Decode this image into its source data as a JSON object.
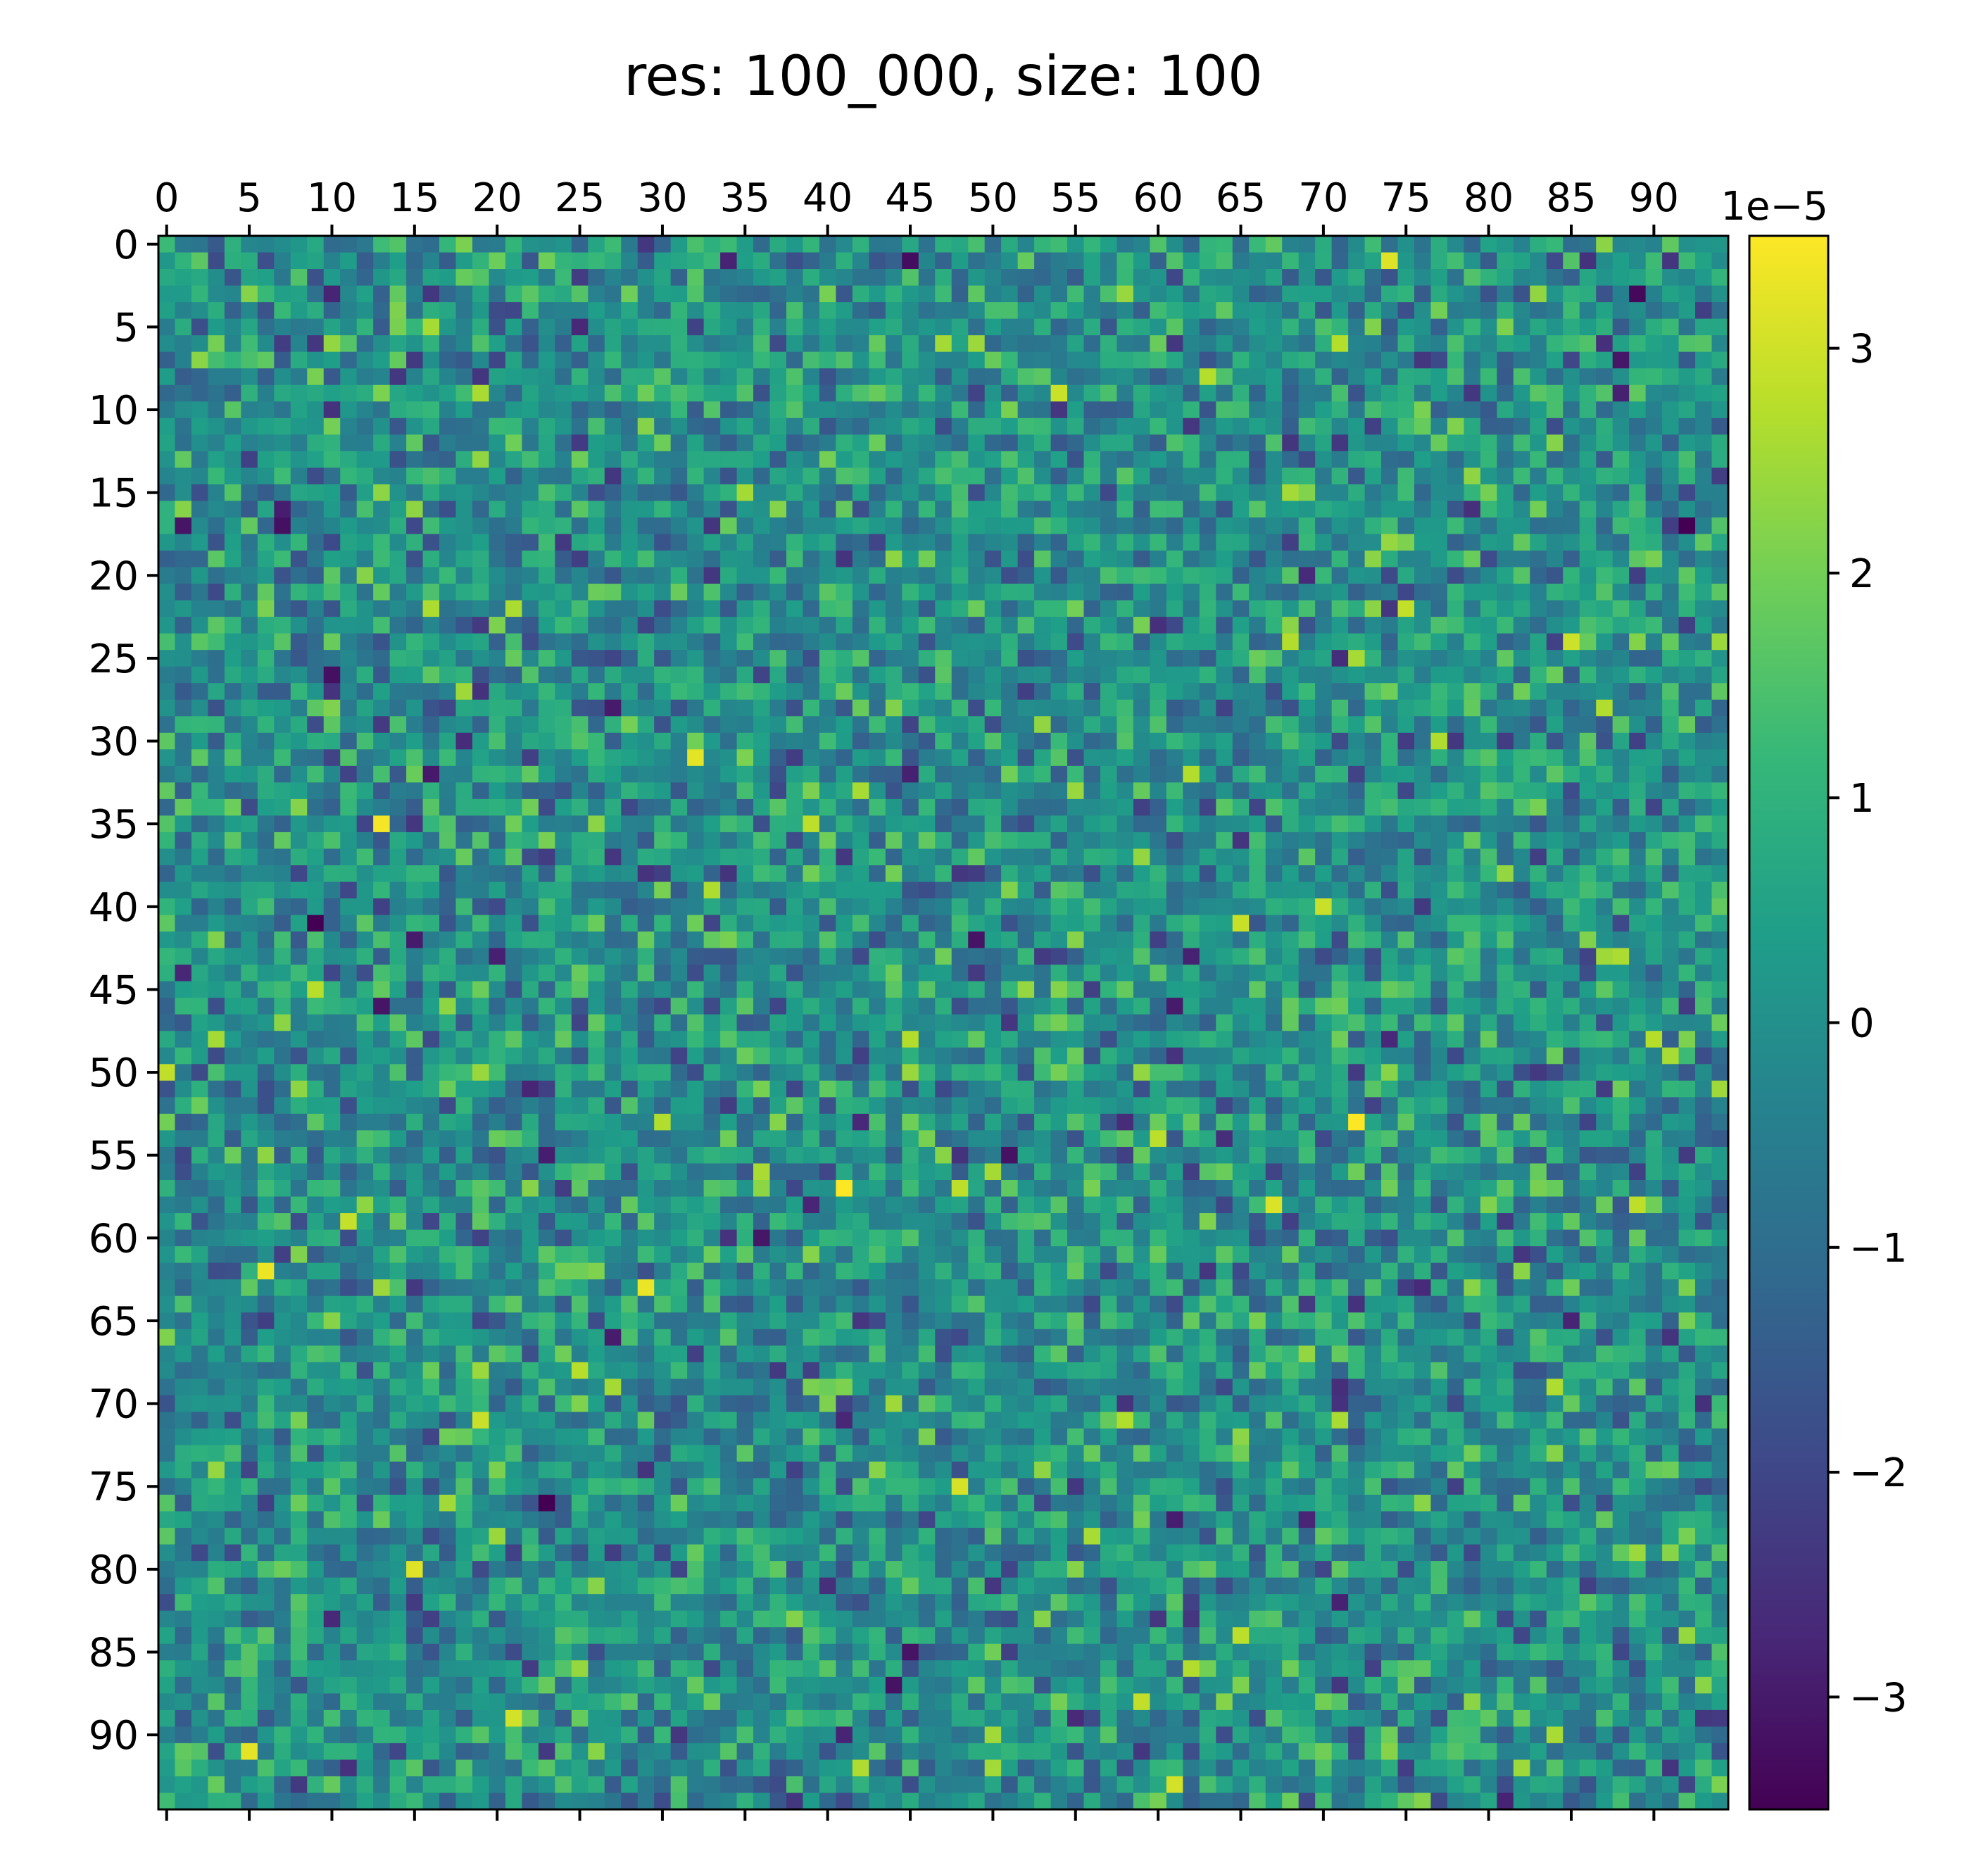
{
  "chart_data": {
    "type": "heatmap",
    "title": "res: 100_000, size: 100",
    "xlabel": "",
    "ylabel": "",
    "grid": false,
    "rows": 95,
    "cols": 95,
    "x_tick_labels": [
      "0",
      "5",
      "10",
      "15",
      "20",
      "25",
      "30",
      "35",
      "40",
      "45",
      "50",
      "55",
      "60",
      "65",
      "70",
      "75",
      "80",
      "85",
      "90"
    ],
    "y_tick_labels": [
      "0",
      "5",
      "10",
      "15",
      "20",
      "25",
      "30",
      "35",
      "40",
      "45",
      "50",
      "55",
      "60",
      "65",
      "70",
      "75",
      "80",
      "85",
      "90"
    ],
    "x_ticks_position": "top",
    "colorbar": {
      "colormap": "viridis",
      "offset_text": "1e−5",
      "range": [
        -3.5,
        3.5
      ],
      "ticks": [
        -3,
        -2,
        -1,
        0,
        1,
        2,
        3
      ],
      "tick_labels": [
        "−3",
        "−2",
        "−1",
        "0",
        "1",
        "2",
        "3"
      ],
      "colors": [
        "#440154",
        "#482878",
        "#3e4989",
        "#31688e",
        "#26828e",
        "#1f9e89",
        "#35b779",
        "#6ece58",
        "#b5de2b",
        "#fde725"
      ]
    },
    "values_description": "",
    "value_stats": {
      "min": -3.5,
      "max": 3.5,
      "mean": 0.0,
      "std": 1.0
    }
  }
}
